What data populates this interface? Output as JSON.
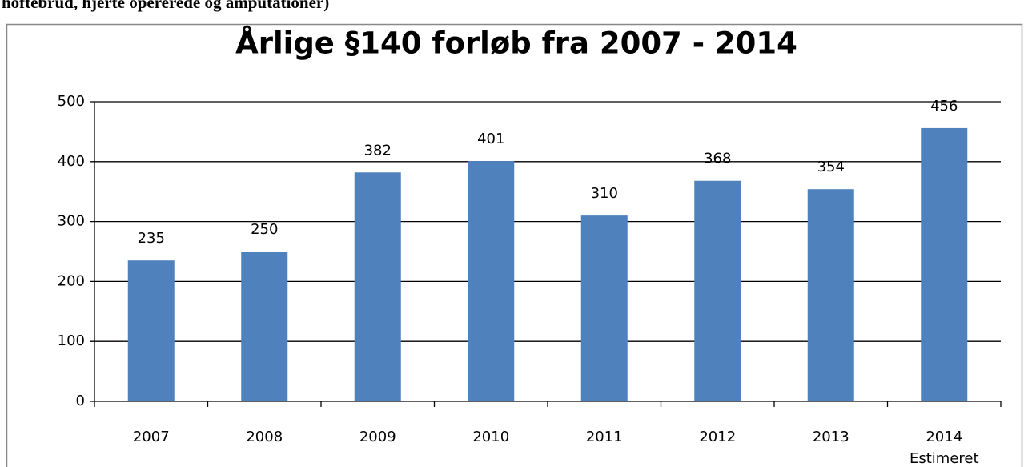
{
  "header_text": "hoftebrud, hjerte opererede og amputationer)",
  "chart_data": {
    "type": "bar",
    "title": "Årlige §140 forløb fra 2007 - 2014",
    "categories": [
      "2007",
      "2008",
      "2009",
      "2010",
      "2011",
      "2012",
      "2013",
      "2014 Estimeret"
    ],
    "values": [
      235,
      250,
      382,
      401,
      310,
      368,
      354,
      456
    ],
    "color": "#4f81bd",
    "ylim": [
      0,
      500
    ],
    "yticks": [
      0,
      100,
      200,
      300,
      400,
      500
    ],
    "grid": true
  }
}
